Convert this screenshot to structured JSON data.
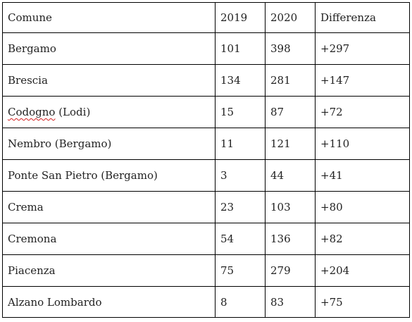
{
  "table": {
    "headers": {
      "comune": "Comune",
      "y2019": "2019",
      "y2020": "2020",
      "diff": "Differenza"
    },
    "rows": [
      {
        "comune": "Bergamo",
        "y2019": "101",
        "y2020": "398",
        "diff": "+297"
      },
      {
        "comune": "Brescia",
        "y2019": "134",
        "y2020": "281",
        "diff": "+147"
      },
      {
        "comune_main": "Codogno",
        "comune_rest": " (Lodi)",
        "y2019": "15",
        "y2020": "87",
        "diff": "+72"
      },
      {
        "comune": "Nembro (Bergamo)",
        "y2019": "11",
        "y2020": "121",
        "diff": "+110"
      },
      {
        "comune": "Ponte San Pietro (Bergamo)",
        "y2019": "3",
        "y2020": "44",
        "diff": "+41"
      },
      {
        "comune": "Crema",
        "y2019": "23",
        "y2020": "103",
        "diff": "+80"
      },
      {
        "comune": "Cremona",
        "y2019": "54",
        "y2020": "136",
        "diff": "+82"
      },
      {
        "comune": "Piacenza",
        "y2019": "75",
        "y2020": "279",
        "diff": "+204"
      },
      {
        "comune": "Alzano Lombardo",
        "y2019": "8",
        "y2020": "83",
        "diff": "+75"
      }
    ]
  },
  "colors": {
    "border": "#000000",
    "text": "#222222",
    "spellcheck_underline": "#d42020"
  }
}
